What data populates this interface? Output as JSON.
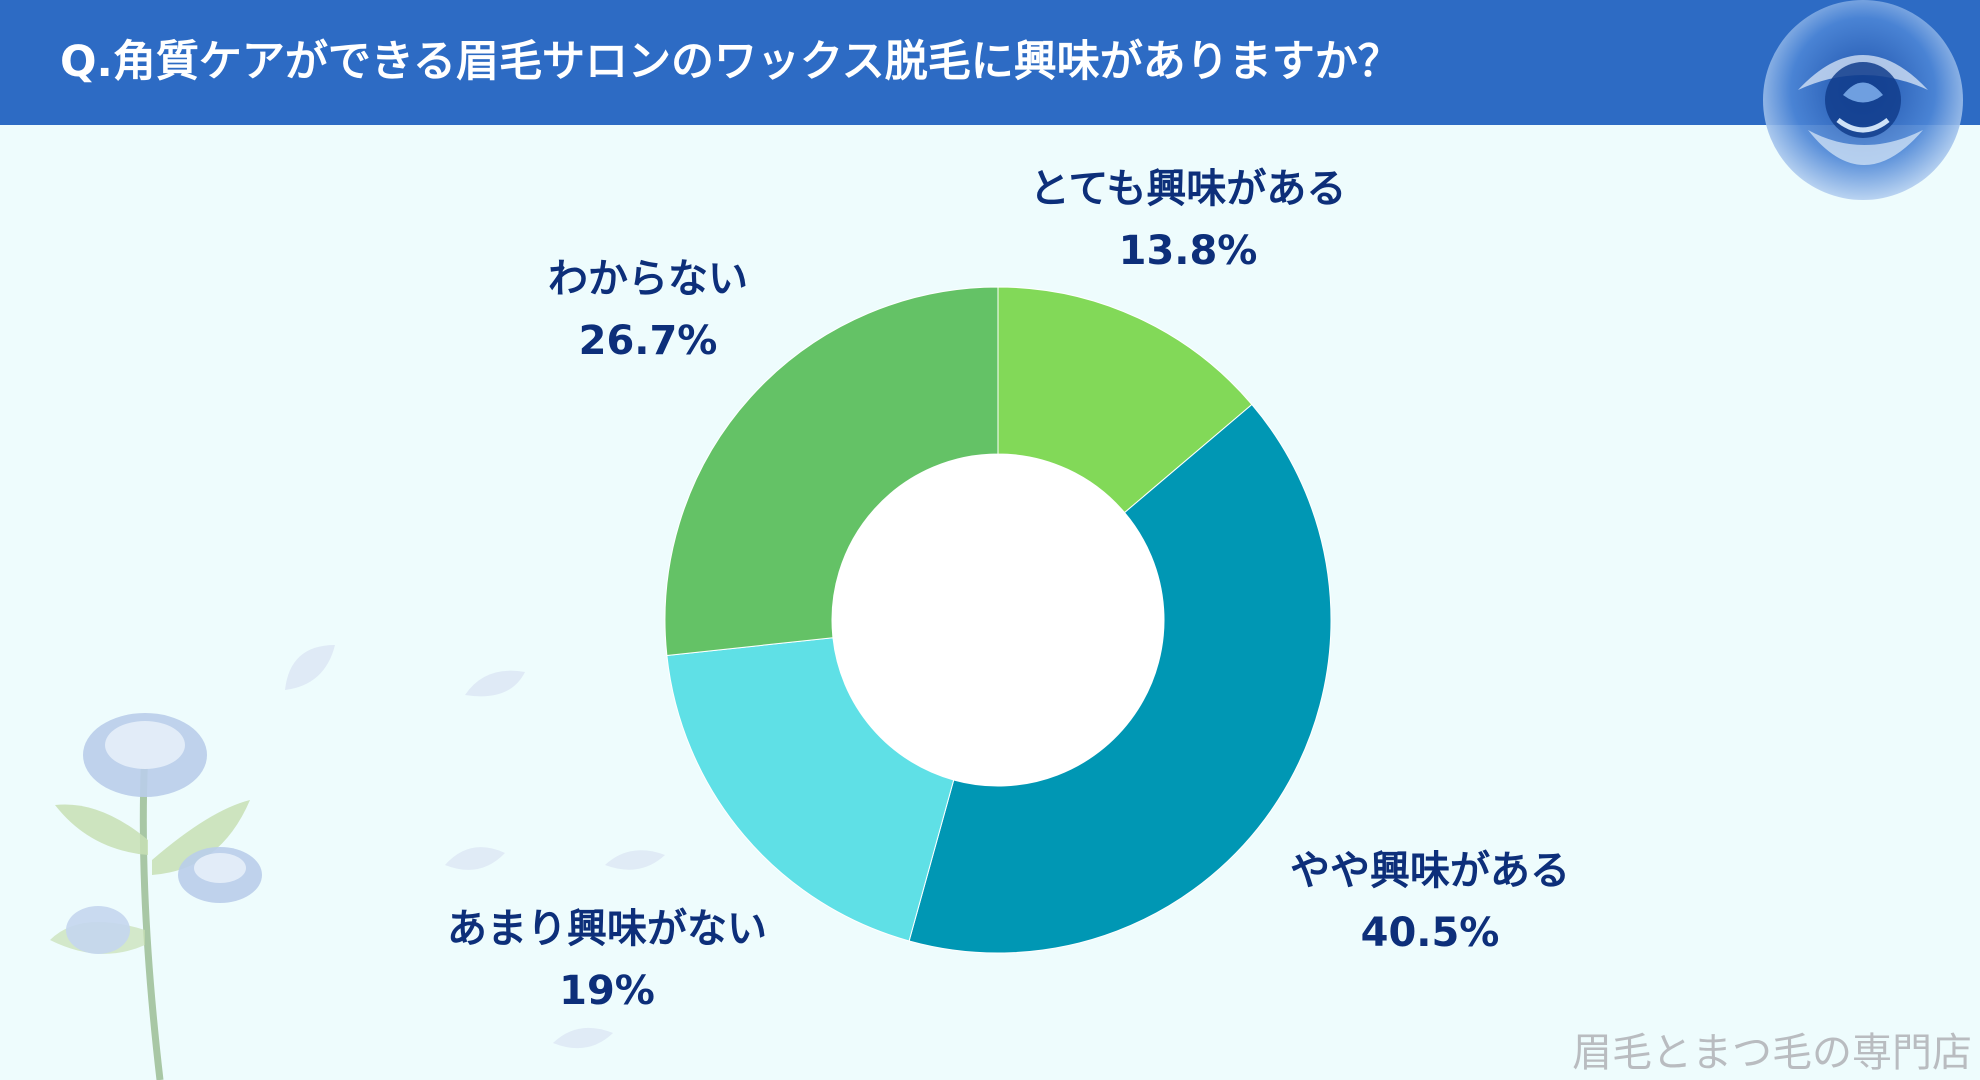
{
  "header": {
    "title": "Q.角質ケアができる眉毛サロンのワックス脱毛に興味がありますか？"
  },
  "chart_data": {
    "type": "donut",
    "title": "Q.角質ケアができる眉毛サロンのワックス脱毛に興味がありますか？",
    "start_angle": "12 o'clock",
    "direction": "clockwise",
    "slices": [
      {
        "label": "とても興味がある",
        "value": 13.8,
        "display": "13.8%",
        "color": "#82d958"
      },
      {
        "label": "やや興味がある",
        "value": 40.5,
        "display": "40.5%",
        "color": "#0097b4"
      },
      {
        "label": "あまり興味がない",
        "value": 19.0,
        "display": "19%",
        "color": "#5fe0e6"
      },
      {
        "label": "わからない",
        "value": 26.7,
        "display": "26.7%",
        "color": "#64c266"
      }
    ]
  },
  "colors": {
    "background": "#eefcfd",
    "header": "#2d6bc4",
    "label_text": "#0d2f7a"
  },
  "footer": {
    "watermark": "眉毛とまつ毛の専門店"
  },
  "decorations": [
    "blue-rose-icon",
    "rose-stem-illustration",
    "petal-icon"
  ]
}
